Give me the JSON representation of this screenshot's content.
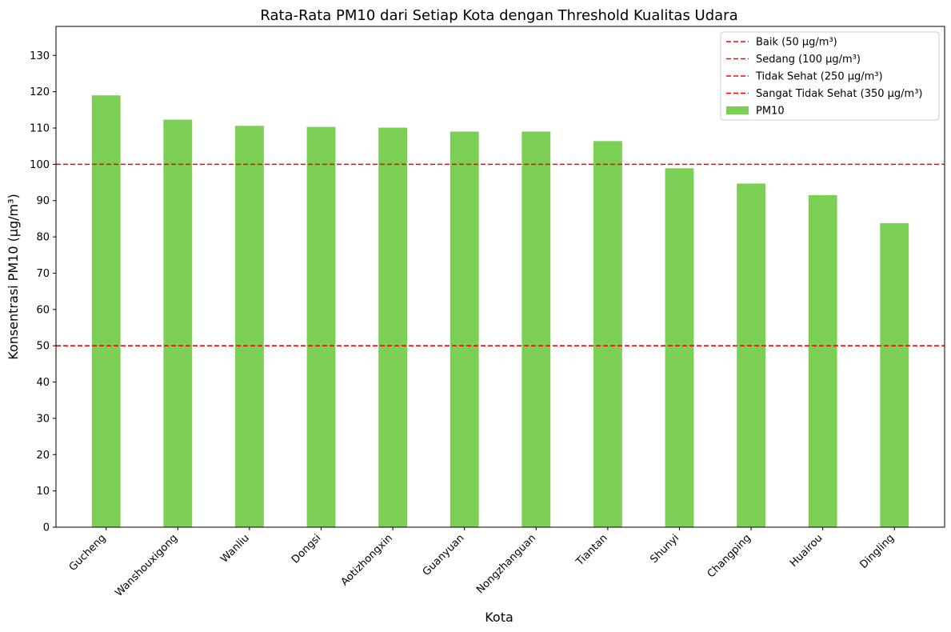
{
  "chart_data": {
    "type": "bar",
    "title": "Rata-Rata PM10 dari Setiap Kota dengan Threshold Kualitas Udara",
    "xlabel": "Kota",
    "ylabel": "Konsentrasi PM10 (µg/m³)",
    "categories": [
      "Gucheng",
      "Wanshouxigong",
      "Wanliu",
      "Dongsi",
      "Aotizhongxin",
      "Guanyuan",
      "Nongzhanguan",
      "Tiantan",
      "Shunyi",
      "Changping",
      "Huairou",
      "Dingling"
    ],
    "series": [
      {
        "name": "PM10",
        "values": [
          119.0,
          112.3,
          110.6,
          110.3,
          110.1,
          109.0,
          109.0,
          106.4,
          98.9,
          94.7,
          91.5,
          83.8
        ],
        "color": "#7bcf54"
      }
    ],
    "ylim": [
      0,
      138
    ],
    "yticks": [
      0,
      10,
      20,
      30,
      40,
      50,
      60,
      70,
      80,
      90,
      100,
      110,
      120,
      130
    ],
    "thresholds": [
      {
        "name": "Baik (50 µg/m³)",
        "value": 50,
        "color": "#ff0000"
      },
      {
        "name": "Sedang (100 µg/m³)",
        "value": 100,
        "color": "#ff0000"
      },
      {
        "name": "Tidak Sehat (250 µg/m³)",
        "value": 250,
        "color": "#ff0000"
      },
      {
        "name": "Sangat Tidak Sehat (350 µg/m³)",
        "value": 350,
        "color": "#ff0000"
      }
    ],
    "grid": false,
    "legend_position": "top-right"
  }
}
